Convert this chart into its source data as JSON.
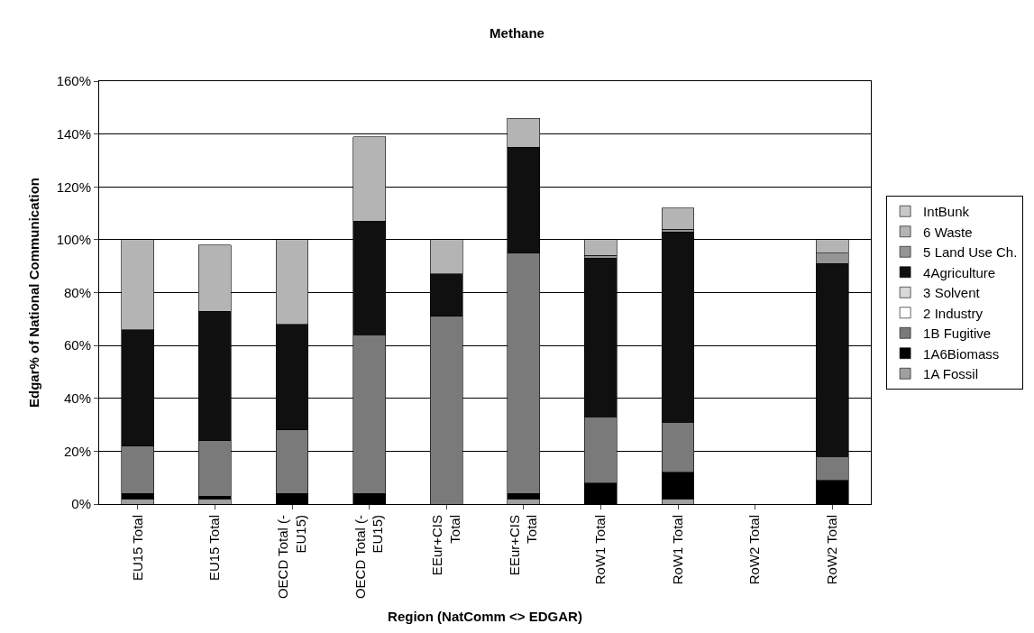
{
  "chart_data": {
    "type": "bar",
    "title": "Methane",
    "xlabel": "Region (NatComm <> EDGAR)",
    "ylabel": "Edgar% of National Communication",
    "categories": [
      "EU15 Total",
      "EU15 Total",
      "OECD Total (-\nEU15)",
      "OECD Total (-\nEU15)",
      "EEur+CIS\nTotal",
      "EEur+CIS\nTotal",
      "RoW1 Total",
      "RoW1 Total",
      "RoW2 Total",
      "RoW2 Total"
    ],
    "stacked": true,
    "ylim": [
      0,
      160
    ],
    "yticks": [
      {
        "value": 0,
        "label": "0%"
      },
      {
        "value": 20,
        "label": "20%"
      },
      {
        "value": 40,
        "label": "40%"
      },
      {
        "value": 60,
        "label": "60%"
      },
      {
        "value": 80,
        "label": "80%"
      },
      {
        "value": 100,
        "label": "100%"
      },
      {
        "value": 120,
        "label": "120%"
      },
      {
        "value": 140,
        "label": "140%"
      },
      {
        "value": 160,
        "label": "160%"
      }
    ],
    "grid": "y",
    "legend": "right",
    "series": [
      {
        "name": "1A Fossil",
        "color": "#a0a0a0",
        "values": [
          2,
          2,
          null,
          null,
          null,
          2,
          null,
          2,
          null,
          null
        ]
      },
      {
        "name": "1A6Biomass",
        "color": "#000000",
        "values": [
          2,
          1,
          4,
          4,
          null,
          2,
          8,
          10,
          null,
          9
        ]
      },
      {
        "name": "1B Fugitive",
        "color": "#7a7a7a",
        "values": [
          18,
          21,
          24,
          60,
          71,
          91,
          25,
          19,
          null,
          9
        ]
      },
      {
        "name": "2 Industry",
        "color": "#ffffff",
        "values": [
          null,
          null,
          null,
          null,
          null,
          null,
          null,
          null,
          null,
          null
        ]
      },
      {
        "name": "3 Solvent",
        "color": "#d8d8d8",
        "values": [
          null,
          null,
          null,
          null,
          null,
          null,
          null,
          null,
          null,
          null
        ]
      },
      {
        "name": "4Agriculture",
        "color": "#101010",
        "values": [
          44,
          49,
          40,
          43,
          16,
          40,
          60,
          72,
          null,
          73
        ]
      },
      {
        "name": "5 Land Use Ch.",
        "color": "#959595",
        "values": [
          null,
          null,
          null,
          null,
          null,
          null,
          1,
          1,
          null,
          4
        ]
      },
      {
        "name": "6 Waste",
        "color": "#b4b4b4",
        "values": [
          34,
          25,
          32,
          32,
          13,
          11,
          6,
          8,
          null,
          5
        ]
      },
      {
        "name": "IntBunk",
        "color": "#c8c8c8",
        "values": [
          null,
          null,
          null,
          null,
          null,
          null,
          null,
          null,
          null,
          null
        ]
      }
    ]
  }
}
